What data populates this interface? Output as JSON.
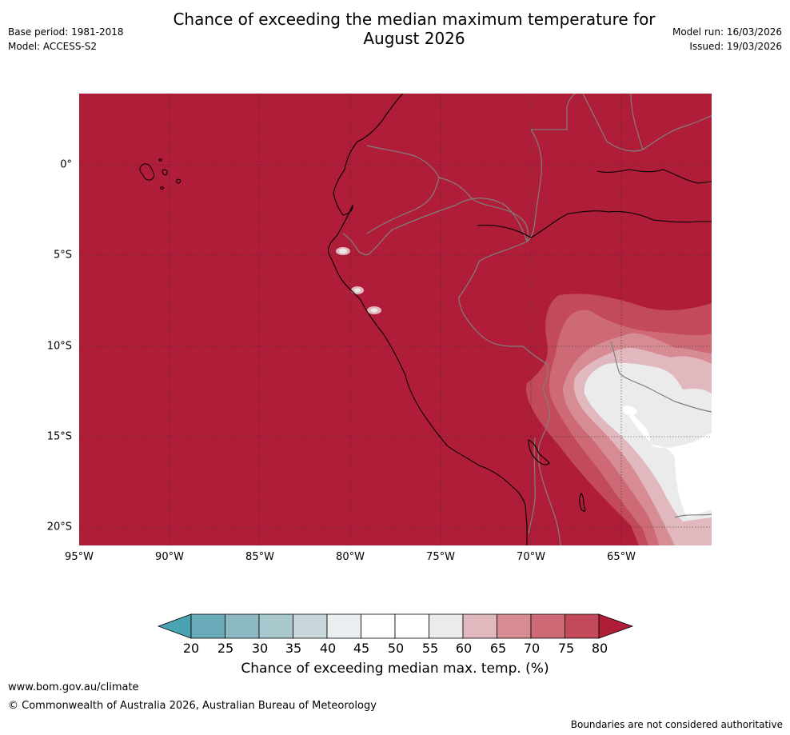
{
  "title": {
    "line1": "Chance of exceeding the median maximum temperature for",
    "line2": "August 2026"
  },
  "meta": {
    "base_period": "Base period: 1981-2018",
    "model": "Model: ACCESS-S2",
    "model_run": "Model run: 16/03/2026",
    "issued": "Issued: 19/03/2026"
  },
  "map": {
    "lat_labels": [
      "0°",
      "5°S",
      "10°S",
      "15°S",
      "20°S"
    ],
    "lon_labels": [
      "95°W",
      "90°W",
      "85°W",
      "80°W",
      "75°W",
      "70°W",
      "65°W"
    ],
    "colors": {
      "c80plus": "#b01d39",
      "c75": "#c24a5a",
      "c70": "#cd6a76",
      "c65": "#d78c94",
      "c60": "#e1b8be",
      "c55": "#ebebec",
      "c50": "#ffffff",
      "coast": "#000000",
      "border": "#808080",
      "grid": "#333333"
    }
  },
  "colorbar": {
    "ticks": [
      "20",
      "25",
      "30",
      "35",
      "40",
      "45",
      "50",
      "55",
      "60",
      "65",
      "70",
      "75",
      "80"
    ],
    "colors": [
      "#69abb8",
      "#8db9c4",
      "#a9c8ce",
      "#c9d7dc",
      "#e9eff1",
      "#ffffff",
      "#ffffff",
      "#ebebec",
      "#e1b8be",
      "#d78c94",
      "#cd6a76",
      "#c24a5a"
    ],
    "low_color": "#4aa3b2",
    "high_color": "#b01d39",
    "label": "Chance of exceeding median max. temp. (%)"
  },
  "footer": {
    "url": "www.bom.gov.au/climate",
    "copyright": "© Commonwealth of Australia 2026, Australian Bureau of Meteorology",
    "disclaimer": "Boundaries are not considered authoritative"
  }
}
